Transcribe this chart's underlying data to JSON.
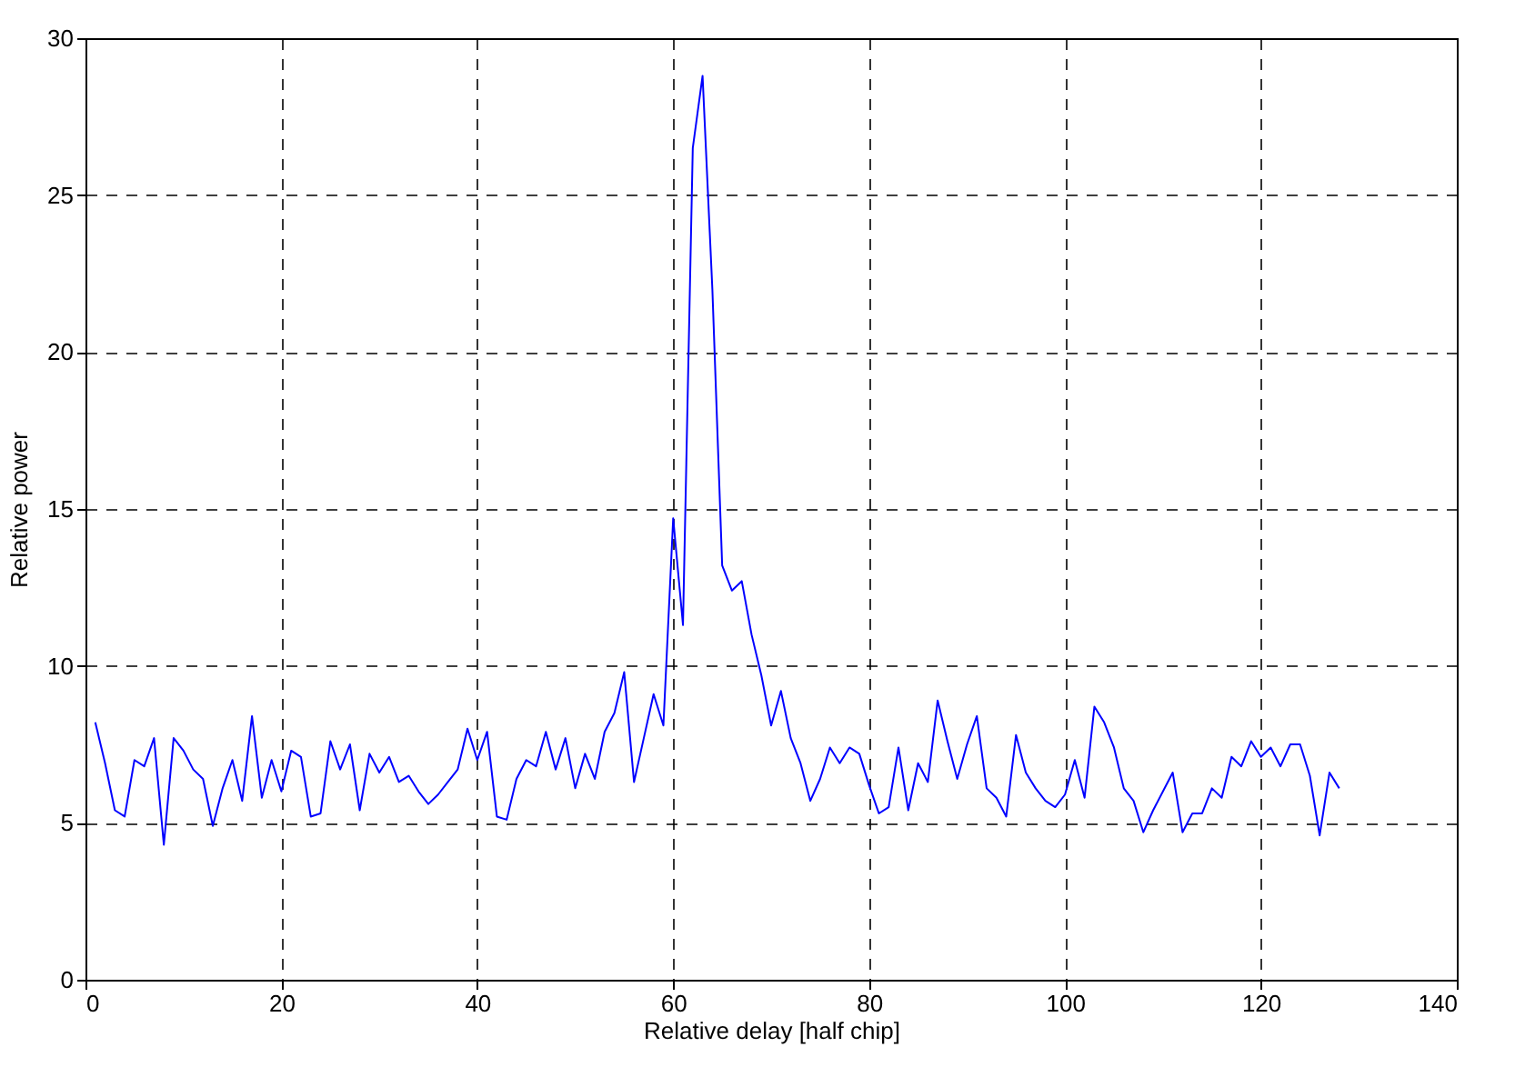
{
  "chart_data": {
    "type": "line",
    "xlabel": "Relative delay [half chip]",
    "ylabel": "Relative power",
    "x": [
      1,
      2,
      3,
      4,
      5,
      6,
      7,
      8,
      9,
      10,
      11,
      12,
      13,
      14,
      15,
      16,
      17,
      18,
      19,
      20,
      21,
      22,
      23,
      24,
      25,
      26,
      27,
      28,
      29,
      30,
      31,
      32,
      33,
      34,
      35,
      36,
      37,
      38,
      39,
      40,
      41,
      42,
      43,
      44,
      45,
      46,
      47,
      48,
      49,
      50,
      51,
      52,
      53,
      54,
      55,
      56,
      57,
      58,
      59,
      60,
      61,
      62,
      63,
      64,
      65,
      66,
      67,
      68,
      69,
      70,
      71,
      72,
      73,
      74,
      75,
      76,
      77,
      78,
      79,
      80,
      81,
      82,
      83,
      84,
      85,
      86,
      87,
      88,
      89,
      90,
      91,
      92,
      93,
      94,
      95,
      96,
      97,
      98,
      99,
      100,
      101,
      102,
      103,
      104,
      105,
      106,
      107,
      108,
      109,
      110,
      111,
      112,
      113,
      114,
      115,
      116,
      117,
      118,
      119,
      120,
      121,
      122,
      123,
      124,
      125,
      126,
      127,
      128
    ],
    "series": [
      {
        "color": "#0000ff",
        "values": [
          8.2,
          6.9,
          5.4,
          5.2,
          7.0,
          6.8,
          7.7,
          4.3,
          7.7,
          7.3,
          6.7,
          6.4,
          4.9,
          6.1,
          7.0,
          5.7,
          8.4,
          5.8,
          7.0,
          6.0,
          7.3,
          7.1,
          5.2,
          5.3,
          7.6,
          6.7,
          7.5,
          5.4,
          7.2,
          6.6,
          7.1,
          6.3,
          6.5,
          6.0,
          5.6,
          5.9,
          6.3,
          6.7,
          8.0,
          7.0,
          7.9,
          5.2,
          5.1,
          6.4,
          7.0,
          6.8,
          7.9,
          6.7,
          7.7,
          6.1,
          7.2,
          6.4,
          7.9,
          8.5,
          9.8,
          6.3,
          7.7,
          9.1,
          8.1,
          14.7,
          11.3,
          26.5,
          28.8,
          22.0,
          13.2,
          12.4,
          12.7,
          11.0,
          9.7,
          8.1,
          9.2,
          7.7,
          6.9,
          5.7,
          6.4,
          7.4,
          6.9,
          7.4,
          7.2,
          6.2,
          5.3,
          5.5,
          7.4,
          5.4,
          6.9,
          6.3,
          8.9,
          7.6,
          6.4,
          7.5,
          8.4,
          6.1,
          5.8,
          5.2,
          7.8,
          6.6,
          6.1,
          5.7,
          5.5,
          5.9,
          7.0,
          5.8,
          8.7,
          8.2,
          7.4,
          6.1,
          5.7,
          4.7,
          5.4,
          6.0,
          6.6,
          4.7,
          5.3,
          5.3,
          6.1,
          5.8,
          7.1,
          6.8,
          7.6,
          7.1,
          7.4,
          6.8,
          7.5,
          7.5,
          6.5,
          4.6,
          6.6,
          6.1
        ]
      }
    ],
    "xlim": [
      0,
      140
    ],
    "xticks": [
      0,
      20,
      40,
      60,
      80,
      100,
      120,
      140
    ],
    "ylim": [
      0,
      30
    ],
    "yticks": [
      0,
      5,
      10,
      15,
      20,
      25,
      30
    ],
    "grid": true,
    "marker": "none",
    "line_style": "solid"
  }
}
